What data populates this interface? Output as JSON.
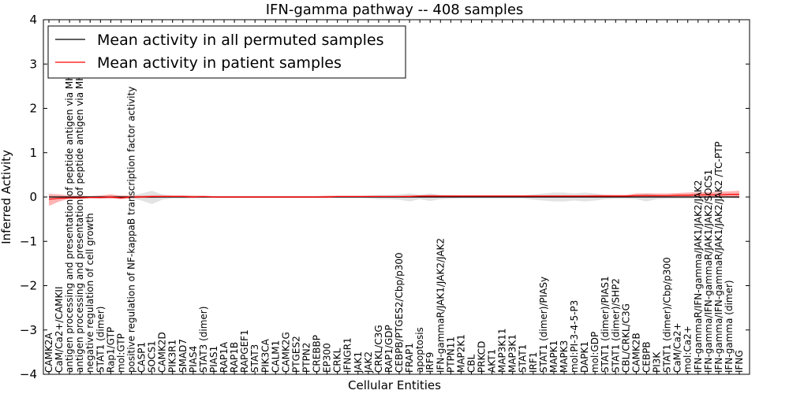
{
  "chart_data": {
    "type": "line",
    "title": "IFN-gamma pathway -- 408 samples",
    "xlabel": "Cellular Entities",
    "ylabel": "Inferred Activity",
    "ylim": [
      -4,
      4
    ],
    "yticks": [
      -4,
      -3,
      -2,
      -1,
      0,
      1,
      2,
      3,
      4
    ],
    "ytick_labels": [
      "−4",
      "−3",
      "−2",
      "−1",
      "0",
      "1",
      "2",
      "3",
      "4"
    ],
    "grid": false,
    "legend_position": "top-left",
    "categories": [
      "CAMK2A",
      "CaM/Ca2+/CAMKII",
      "antigen processing and presentation of peptide antigen via MHC class I",
      "antigen processing and presentation of peptide antigen via MHC class II",
      "negative regulation of cell growth",
      "STAT1 (dimer)",
      "Rap1/GTP",
      "mol:GTP",
      "positive regulation of NF-kappaB transcription factor activity",
      "CASP1",
      "SOCS1",
      "CAMK2D",
      "PIK3R1",
      "SMAD7",
      "PIAS4",
      "STAT3 (dimer)",
      "PIAS1",
      "RAP1A",
      "RAP1B",
      "RAPGEF1",
      "STAT3",
      "PIK3CA",
      "CALM1",
      "CAMK2G",
      "PTGES2",
      "PTPN2",
      "CREBBP",
      "EP300",
      "CRKL",
      "IFNGR1",
      "JAK1",
      "JAK2",
      "CRKL/C3G",
      "RAP1/GDP",
      "CEBPB/PTGES2/Cbp/p300",
      "FRAP1",
      "apoptosis",
      "IRF9",
      "IFN-gammaR/JAK1/JAK2/JAK2",
      "PTPN11",
      "MAP2K1",
      "CBL",
      "PRKCD",
      "AKT1",
      "MAP3K11",
      "MAP3K1",
      "STAT1",
      "IRF1",
      "STAT1 (dimer)/PIASy",
      "MAPK1",
      "MAPK3",
      "mol:PI-3-4-5-P3",
      "DAPK1",
      "mol:GDP",
      "STAT1 (dimer)/PIAS1",
      "STAT1 (dimer)/SHP2",
      "CBL/CRKL/C3G",
      "CAMK2B",
      "CEBPB",
      "PI3K",
      "STAT1 (dimer)/Cbp/p300",
      "CaM/Ca2+",
      "mol:Ca2+",
      "IFN-gammaR/IFN-gamma/JAK1/JAK2/JAK2",
      "IFN-gamma/IFN-gammaR/JAK1/JAK2/SOCS1",
      "IFN-gamma/IFN-gammaR/JAK1/JAK2/JAK2 /TC-PTP",
      "IFN-gamma (dimer)",
      "IFNG"
    ],
    "series": [
      {
        "name": "Mean activity in all permuted samples",
        "color": "#000000",
        "values": [
          0,
          0,
          0,
          0,
          0,
          0,
          0,
          0,
          0,
          0,
          0,
          0,
          0,
          0,
          0,
          0,
          0,
          0,
          0,
          0,
          0,
          0,
          0,
          0,
          0,
          0,
          0,
          0,
          0,
          0,
          0,
          0,
          0,
          0,
          0,
          0,
          0,
          0,
          0,
          0,
          0,
          0,
          0,
          0,
          0,
          0,
          0,
          0,
          0,
          0,
          0,
          0,
          0,
          0,
          0,
          0,
          0,
          0,
          0,
          0,
          0,
          0,
          0,
          0,
          0,
          0,
          0,
          0
        ],
        "lower": [
          -0.02,
          -0.02,
          -0.02,
          -0.02,
          -0.02,
          -0.03,
          -0.03,
          -0.03,
          -0.03,
          -0.08,
          -0.16,
          -0.06,
          -0.03,
          -0.03,
          -0.03,
          -0.02,
          -0.02,
          -0.02,
          -0.02,
          -0.02,
          -0.02,
          -0.02,
          -0.02,
          -0.02,
          -0.02,
          -0.02,
          -0.02,
          -0.02,
          -0.02,
          -0.02,
          -0.02,
          -0.03,
          -0.05,
          -0.05,
          -0.06,
          -0.1,
          -0.05,
          -0.09,
          -0.05,
          -0.04,
          -0.03,
          -0.03,
          -0.03,
          -0.03,
          -0.03,
          -0.03,
          -0.03,
          -0.06,
          -0.08,
          -0.1,
          -0.1,
          -0.08,
          -0.1,
          -0.08,
          -0.05,
          -0.04,
          -0.04,
          -0.05,
          -0.1,
          -0.05,
          -0.04,
          -0.04,
          -0.04,
          -0.03,
          -0.03,
          -0.03,
          -0.03,
          -0.03
        ],
        "upper": [
          0.02,
          0.02,
          0.02,
          0.02,
          0.02,
          0.03,
          0.03,
          0.03,
          0.03,
          0.08,
          0.14,
          0.06,
          0.03,
          0.03,
          0.03,
          0.02,
          0.02,
          0.02,
          0.02,
          0.02,
          0.02,
          0.02,
          0.02,
          0.02,
          0.02,
          0.02,
          0.02,
          0.02,
          0.02,
          0.02,
          0.02,
          0.03,
          0.05,
          0.05,
          0.06,
          0.08,
          0.05,
          0.08,
          0.05,
          0.04,
          0.03,
          0.03,
          0.03,
          0.03,
          0.03,
          0.03,
          0.03,
          0.06,
          0.08,
          0.1,
          0.1,
          0.08,
          0.1,
          0.08,
          0.05,
          0.04,
          0.04,
          0.05,
          0.08,
          0.05,
          0.04,
          0.04,
          0.04,
          0.03,
          0.03,
          0.03,
          0.03,
          0.03
        ]
      },
      {
        "name": "Mean activity in patient samples",
        "color": "#ff0000",
        "values": [
          -0.05,
          -0.03,
          -0.02,
          -0.02,
          -0.01,
          -0.01,
          0.0,
          -0.02,
          0.0,
          0.0,
          0.01,
          0.01,
          0.01,
          0.01,
          0.0,
          0.01,
          0.0,
          0.0,
          0.0,
          0.0,
          0.0,
          0.0,
          0.0,
          0.0,
          0.0,
          0.0,
          0.0,
          0.0,
          0.01,
          0.01,
          0.01,
          0.01,
          0.01,
          0.01,
          0.01,
          0.01,
          0.02,
          0.02,
          0.02,
          0.02,
          0.02,
          0.02,
          0.02,
          0.02,
          0.02,
          0.02,
          0.02,
          0.02,
          0.02,
          0.02,
          0.02,
          0.02,
          0.02,
          0.02,
          0.02,
          0.02,
          0.02,
          0.03,
          0.03,
          0.03,
          0.03,
          0.04,
          0.04,
          0.05,
          0.05,
          0.05,
          0.06,
          0.06
        ],
        "lower": [
          -0.2,
          -0.1,
          -0.04,
          -0.04,
          -0.03,
          -0.04,
          -0.03,
          -0.05,
          -0.03,
          -0.02,
          -0.02,
          -0.01,
          -0.01,
          -0.01,
          -0.02,
          -0.01,
          -0.02,
          -0.02,
          -0.02,
          -0.02,
          -0.02,
          -0.02,
          -0.02,
          -0.02,
          -0.02,
          -0.02,
          -0.02,
          -0.02,
          -0.01,
          -0.01,
          -0.01,
          -0.01,
          -0.01,
          -0.01,
          -0.01,
          -0.01,
          -0.01,
          -0.01,
          0.0,
          0.0,
          0.0,
          0.0,
          0.0,
          0.0,
          0.0,
          0.0,
          0.0,
          0.0,
          0.0,
          0.0,
          0.0,
          0.0,
          0.0,
          0.0,
          0.0,
          0.0,
          0.0,
          0.0,
          0.0,
          0.0,
          0.0,
          0.0,
          0.0,
          0.0,
          0.0,
          0.0,
          -0.01,
          -0.02
        ],
        "upper": [
          0.07,
          0.06,
          0.03,
          0.03,
          0.02,
          0.03,
          0.06,
          0.03,
          0.03,
          0.03,
          0.04,
          0.04,
          0.04,
          0.04,
          0.03,
          0.03,
          0.02,
          0.02,
          0.02,
          0.02,
          0.02,
          0.02,
          0.02,
          0.02,
          0.02,
          0.02,
          0.02,
          0.03,
          0.03,
          0.03,
          0.03,
          0.03,
          0.03,
          0.03,
          0.03,
          0.04,
          0.04,
          0.05,
          0.04,
          0.04,
          0.04,
          0.04,
          0.04,
          0.04,
          0.04,
          0.04,
          0.04,
          0.04,
          0.04,
          0.04,
          0.04,
          0.04,
          0.04,
          0.05,
          0.05,
          0.05,
          0.05,
          0.08,
          0.08,
          0.08,
          0.08,
          0.09,
          0.1,
          0.11,
          0.11,
          0.12,
          0.13,
          0.14
        ]
      }
    ]
  }
}
